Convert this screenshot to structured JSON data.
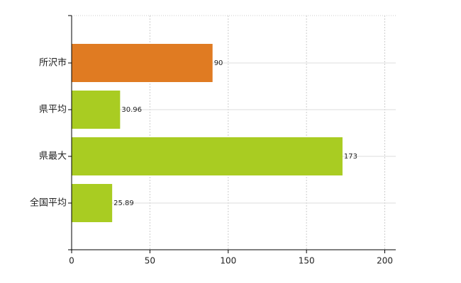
{
  "chart_data": {
    "type": "hbar",
    "categories": [
      "所沢市",
      "県平均",
      "県最大",
      "全国平均"
    ],
    "values": [
      90,
      30.96,
      173,
      25.89
    ],
    "colors": [
      "#e07b22",
      "#a9cc22",
      "#a9cc22",
      "#a9cc22"
    ],
    "xlim": [
      0,
      207
    ],
    "xticks": [
      0,
      50,
      100,
      150,
      200
    ],
    "grid": true
  }
}
